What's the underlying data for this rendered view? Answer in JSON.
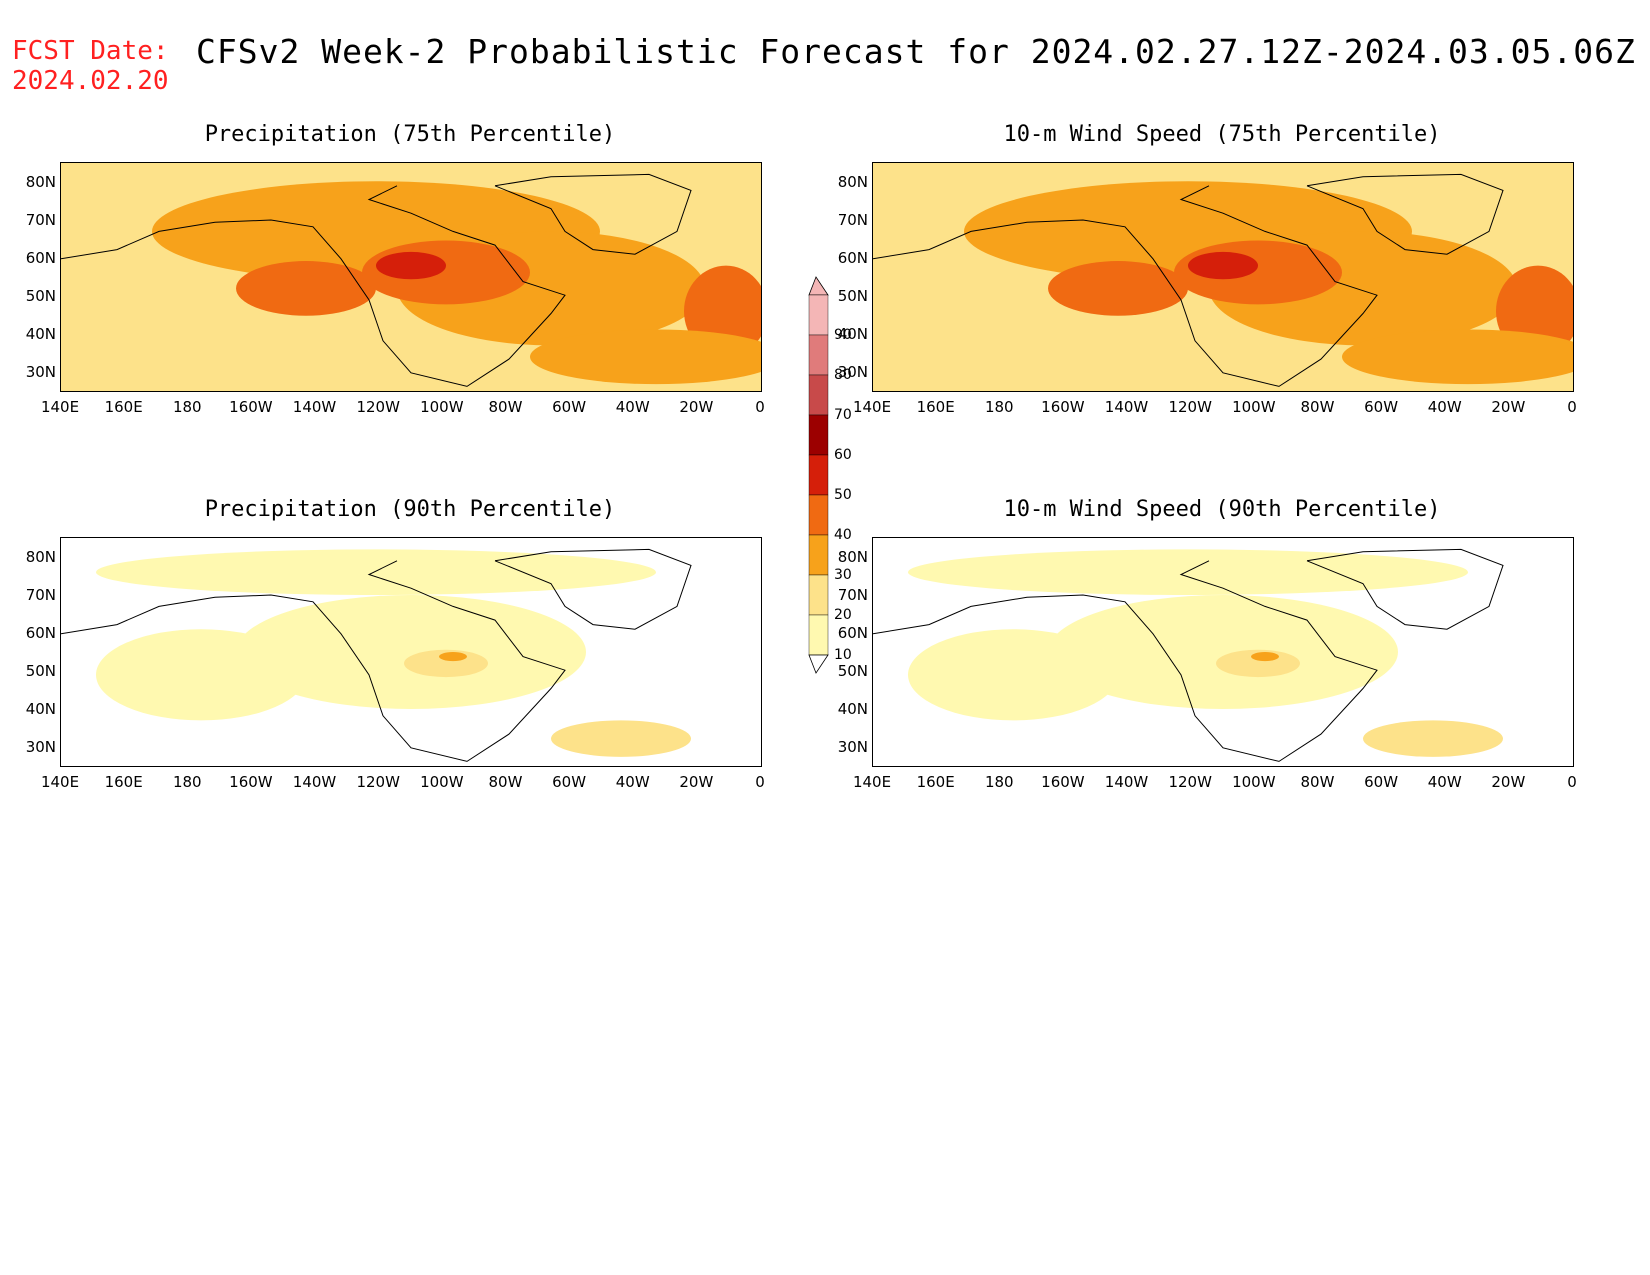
{
  "header": {
    "fcst_label": "FCST Date:",
    "fcst_date": "2024.02.20",
    "title": "CFSv2 Week-2 Probabilistic Forecast for 2024.02.27.12Z-2024.03.05.06Z"
  },
  "panels": [
    {
      "title": "Precipitation (75th Percentile)",
      "intensity": "high"
    },
    {
      "title": "10-m Wind Speed (75th Percentile)",
      "intensity": "high"
    },
    {
      "title": "Precipitation (90th Percentile)",
      "intensity": "low"
    },
    {
      "title": "10-m Wind Speed (90th Percentile)",
      "intensity": "low"
    }
  ],
  "axes": {
    "lat_labels": [
      "80N",
      "70N",
      "60N",
      "50N",
      "40N",
      "30N"
    ],
    "lon_labels": [
      "140E",
      "160E",
      "180",
      "160W",
      "140W",
      "120W",
      "100W",
      "80W",
      "60W",
      "40W",
      "20W",
      "0"
    ]
  },
  "colorbar": {
    "levels": [
      "10",
      "20",
      "30",
      "40",
      "50",
      "60",
      "70",
      "80",
      "90"
    ],
    "colors": [
      "#fff9b0",
      "#fde28a",
      "#f7a21b",
      "#f06a12",
      "#d51f0a",
      "#9c0000",
      "#c84a4a",
      "#e07b7b",
      "#f4b6b6"
    ]
  }
}
